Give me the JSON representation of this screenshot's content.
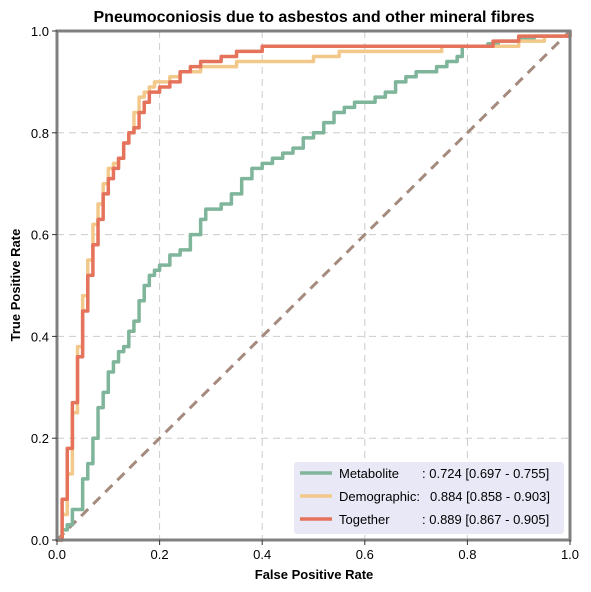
{
  "chart_data": {
    "type": "line",
    "title": "Pneumoconiosis due to asbestos and other mineral fibres",
    "xlabel": "False Positive Rate",
    "ylabel": "True Positive Rate",
    "xlim": [
      0,
      1
    ],
    "ylim": [
      0,
      1
    ],
    "xticks": [
      "0.0",
      "0.2",
      "0.4",
      "0.6",
      "0.8",
      "1.0"
    ],
    "yticks": [
      "0.0",
      "0.2",
      "0.4",
      "0.6",
      "0.8",
      "1.0"
    ],
    "grid": true,
    "legend_position": "bottom-right",
    "legend_background": "#e8e8f7",
    "diagonal": {
      "x": [
        0,
        1
      ],
      "y": [
        0,
        1
      ],
      "color": "#a58a7e",
      "style": "dashed"
    },
    "series": [
      {
        "name": "Metabolite",
        "label_name": "Metabolite",
        "label_stats": ": 0.724 [0.697 - 0.755]",
        "color": "#7fb59a",
        "x": [
          0,
          0.01,
          0.02,
          0.03,
          0.05,
          0.06,
          0.07,
          0.08,
          0.09,
          0.1,
          0.11,
          0.12,
          0.13,
          0.14,
          0.15,
          0.16,
          0.17,
          0.18,
          0.19,
          0.2,
          0.22,
          0.24,
          0.26,
          0.28,
          0.29,
          0.3,
          0.32,
          0.34,
          0.36,
          0.38,
          0.4,
          0.42,
          0.44,
          0.46,
          0.48,
          0.5,
          0.52,
          0.54,
          0.56,
          0.58,
          0.6,
          0.62,
          0.64,
          0.66,
          0.68,
          0.7,
          0.72,
          0.74,
          0.76,
          0.78,
          0.79,
          0.8,
          0.82,
          0.84,
          0.86,
          0.88,
          0.9,
          0.93,
          0.96,
          1.0
        ],
        "y": [
          0,
          0.02,
          0.03,
          0.06,
          0.12,
          0.15,
          0.2,
          0.26,
          0.29,
          0.33,
          0.35,
          0.37,
          0.38,
          0.41,
          0.43,
          0.47,
          0.5,
          0.52,
          0.53,
          0.54,
          0.56,
          0.57,
          0.6,
          0.63,
          0.65,
          0.65,
          0.66,
          0.68,
          0.71,
          0.73,
          0.74,
          0.75,
          0.76,
          0.77,
          0.79,
          0.8,
          0.82,
          0.84,
          0.85,
          0.86,
          0.86,
          0.87,
          0.88,
          0.9,
          0.91,
          0.92,
          0.92,
          0.93,
          0.94,
          0.95,
          0.97,
          0.97,
          0.97,
          0.975,
          0.98,
          0.98,
          0.985,
          0.99,
          0.99,
          1.0
        ]
      },
      {
        "name": "Demographic",
        "label_name": "Demographic:",
        "label_stats": "0.884 [0.858 - 0.903]",
        "color": "#f3c98b",
        "x": [
          0,
          0.01,
          0.02,
          0.03,
          0.04,
          0.05,
          0.06,
          0.07,
          0.08,
          0.09,
          0.1,
          0.11,
          0.12,
          0.13,
          0.14,
          0.15,
          0.16,
          0.17,
          0.18,
          0.19,
          0.2,
          0.22,
          0.24,
          0.26,
          0.28,
          0.3,
          0.32,
          0.35,
          0.4,
          0.45,
          0.5,
          0.55,
          0.6,
          0.65,
          0.7,
          0.75,
          0.8,
          0.85,
          0.9,
          0.95,
          1.0
        ],
        "y": [
          0,
          0.05,
          0.13,
          0.25,
          0.38,
          0.48,
          0.55,
          0.62,
          0.66,
          0.7,
          0.73,
          0.74,
          0.75,
          0.78,
          0.8,
          0.84,
          0.87,
          0.88,
          0.89,
          0.9,
          0.9,
          0.91,
          0.92,
          0.92,
          0.93,
          0.93,
          0.93,
          0.94,
          0.94,
          0.94,
          0.95,
          0.96,
          0.96,
          0.96,
          0.96,
          0.97,
          0.97,
          0.97,
          0.98,
          0.99,
          1.0
        ]
      },
      {
        "name": "Together",
        "label_name": "Together",
        "label_stats": ": 0.889 [0.867 - 0.905]",
        "color": "#e5735c",
        "x": [
          0,
          0.01,
          0.02,
          0.03,
          0.04,
          0.05,
          0.06,
          0.07,
          0.08,
          0.09,
          0.1,
          0.11,
          0.12,
          0.13,
          0.14,
          0.15,
          0.16,
          0.17,
          0.18,
          0.2,
          0.22,
          0.24,
          0.26,
          0.28,
          0.3,
          0.32,
          0.35,
          0.4,
          0.45,
          0.5,
          0.55,
          0.6,
          0.65,
          0.7,
          0.75,
          0.8,
          0.85,
          0.9,
          0.95,
          1.0
        ],
        "y": [
          0,
          0.08,
          0.18,
          0.27,
          0.36,
          0.45,
          0.52,
          0.58,
          0.63,
          0.68,
          0.71,
          0.73,
          0.75,
          0.78,
          0.8,
          0.81,
          0.84,
          0.86,
          0.88,
          0.89,
          0.9,
          0.92,
          0.93,
          0.94,
          0.94,
          0.95,
          0.96,
          0.97,
          0.97,
          0.97,
          0.97,
          0.97,
          0.97,
          0.97,
          0.97,
          0.97,
          0.98,
          0.99,
          0.99,
          1.0
        ]
      }
    ]
  }
}
